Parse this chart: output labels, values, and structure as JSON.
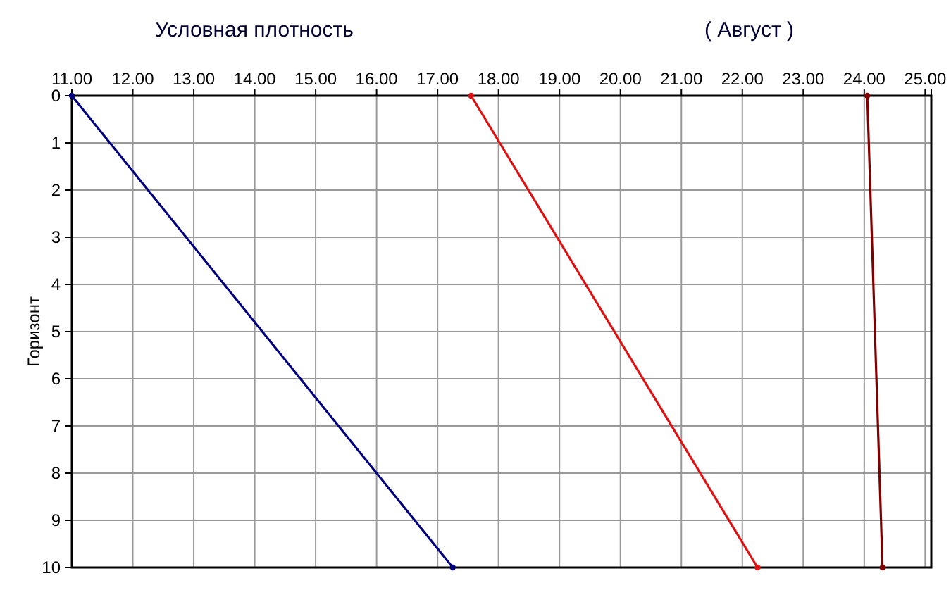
{
  "chart_data": {
    "type": "line",
    "title": "Условная плотность",
    "subtitle": "( Август )",
    "ylabel": "Горизонт",
    "xlim": [
      11,
      25.1
    ],
    "xticks": [
      {
        "value": 11,
        "label": "11.00"
      },
      {
        "value": 12,
        "label": "12.00"
      },
      {
        "value": 13,
        "label": "13.00"
      },
      {
        "value": 14,
        "label": "14.00"
      },
      {
        "value": 15,
        "label": "15.00"
      },
      {
        "value": 16,
        "label": "16.00"
      },
      {
        "value": 17,
        "label": "17.00"
      },
      {
        "value": 18,
        "label": "18.00"
      },
      {
        "value": 19,
        "label": "19.00"
      },
      {
        "value": 20,
        "label": "20.00"
      },
      {
        "value": 21,
        "label": "21.00"
      },
      {
        "value": 22,
        "label": "22.00"
      },
      {
        "value": 23,
        "label": "23.00"
      },
      {
        "value": 24,
        "label": "24.00"
      },
      {
        "value": 25,
        "label": "25.00"
      }
    ],
    "ylim": [
      10,
      0
    ],
    "yticks": [
      0,
      1,
      2,
      3,
      4,
      5,
      6,
      7,
      8,
      9,
      10
    ],
    "grid": true,
    "marker": "circle",
    "line_style": "solid",
    "series": [
      {
        "color": "#000080",
        "x": [
          11,
          17.25
        ],
        "values": [
          0,
          10
        ]
      },
      {
        "color": "#e01010",
        "x": [
          17.55,
          22.25
        ],
        "values": [
          0,
          10
        ]
      },
      {
        "color": "#800000",
        "x": [
          24.05,
          24.3
        ],
        "values": [
          0,
          10
        ]
      }
    ]
  }
}
